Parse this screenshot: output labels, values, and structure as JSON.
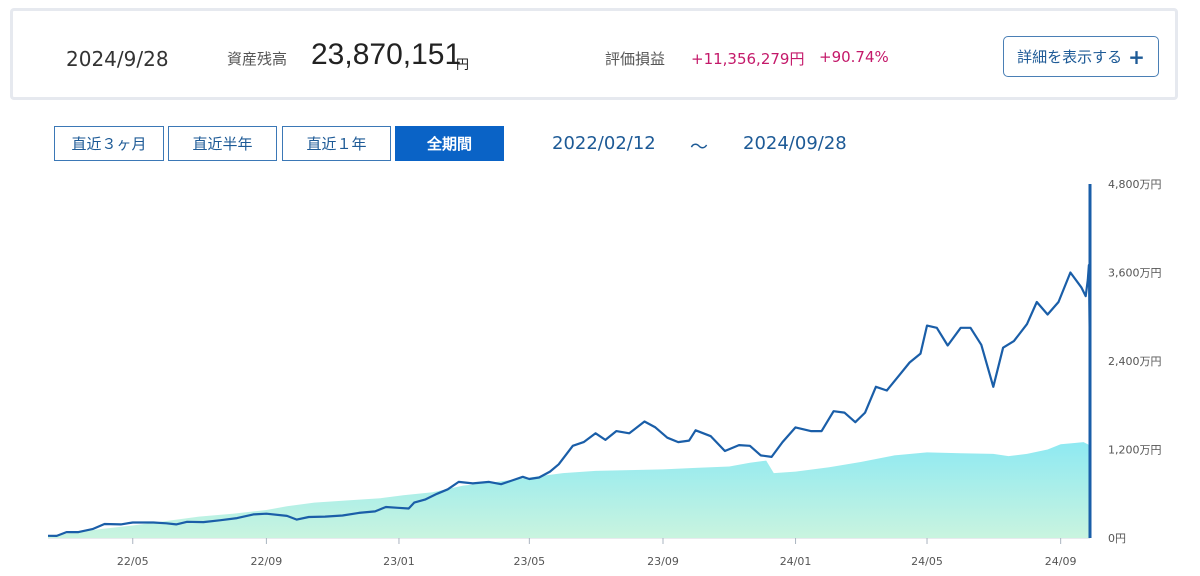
{
  "summary": {
    "date": "2024/9/28",
    "balance_label": "資産残高",
    "balance_value": "23,870,151",
    "balance_unit": "円",
    "pl_label": "評価損益",
    "pl_amount": "+11,356,279円",
    "pl_percent": "+90.74%",
    "detail_button": "詳細を表示する"
  },
  "range_buttons": [
    "直近３ヶ月",
    "直近半年",
    "直近１年",
    "全期間"
  ],
  "active_range": "全期間",
  "period": {
    "start": "2022/02/12",
    "separator": "～",
    "end": "2024/09/28"
  },
  "colors": {
    "line": "#1a5ea8",
    "area_top": "#8ee9f2",
    "area_bottom": "#c9f4df",
    "accent": "#0a63c6",
    "profit": "#c4196a"
  },
  "chart_data": {
    "type": "line",
    "x_ticks": [
      "22/05",
      "22/09",
      "23/01",
      "23/05",
      "23/09",
      "24/01",
      "24/05",
      "24/09"
    ],
    "y_ticks": [
      "0円",
      "1,200万円",
      "2,400万円",
      "3,600万円",
      "4,800万円"
    ],
    "ylim": [
      0,
      4800
    ],
    "y_unit": "万円",
    "x_start": "2022/02/12",
    "x_end": "2024/09/28",
    "series": [
      {
        "role": "balance",
        "style": "line",
        "points": [
          [
            "2022-02-12",
            30
          ],
          [
            "2022-02-20",
            28
          ],
          [
            "2022-03-01",
            80
          ],
          [
            "2022-03-12",
            80
          ],
          [
            "2022-03-25",
            120
          ],
          [
            "2022-04-05",
            190
          ],
          [
            "2022-04-20",
            185
          ],
          [
            "2022-05-01",
            210
          ],
          [
            "2022-05-20",
            210
          ],
          [
            "2022-06-01",
            200
          ],
          [
            "2022-06-10",
            185
          ],
          [
            "2022-06-20",
            220
          ],
          [
            "2022-07-05",
            215
          ],
          [
            "2022-07-20",
            240
          ],
          [
            "2022-08-05",
            270
          ],
          [
            "2022-08-20",
            320
          ],
          [
            "2022-09-01",
            330
          ],
          [
            "2022-09-20",
            300
          ],
          [
            "2022-09-29",
            250
          ],
          [
            "2022-10-10",
            285
          ],
          [
            "2022-10-25",
            290
          ],
          [
            "2022-11-10",
            305
          ],
          [
            "2022-11-25",
            340
          ],
          [
            "2022-12-10",
            360
          ],
          [
            "2022-12-20",
            420
          ],
          [
            "2022-12-31",
            410
          ],
          [
            "2023-01-10",
            400
          ],
          [
            "2023-01-15",
            480
          ],
          [
            "2023-01-25",
            520
          ],
          [
            "2023-02-05",
            600
          ],
          [
            "2023-02-15",
            660
          ],
          [
            "2023-02-25",
            760
          ],
          [
            "2023-03-10",
            740
          ],
          [
            "2023-03-25",
            760
          ],
          [
            "2023-04-05",
            730
          ],
          [
            "2023-04-15",
            780
          ],
          [
            "2023-04-25",
            830
          ],
          [
            "2023-05-01",
            800
          ],
          [
            "2023-05-10",
            820
          ],
          [
            "2023-05-20",
            900
          ],
          [
            "2023-05-28",
            1000
          ],
          [
            "2023-06-10",
            1250
          ],
          [
            "2023-06-20",
            1300
          ],
          [
            "2023-07-01",
            1420
          ],
          [
            "2023-07-10",
            1330
          ],
          [
            "2023-07-20",
            1450
          ],
          [
            "2023-08-01",
            1420
          ],
          [
            "2023-08-15",
            1580
          ],
          [
            "2023-08-25",
            1500
          ],
          [
            "2023-09-05",
            1360
          ],
          [
            "2023-09-15",
            1300
          ],
          [
            "2023-09-25",
            1320
          ],
          [
            "2023-10-01",
            1460
          ],
          [
            "2023-10-15",
            1380
          ],
          [
            "2023-10-28",
            1180
          ],
          [
            "2023-11-10",
            1260
          ],
          [
            "2023-11-20",
            1250
          ],
          [
            "2023-11-30",
            1120
          ],
          [
            "2023-12-10",
            1100
          ],
          [
            "2023-12-20",
            1300
          ],
          [
            "2024-01-01",
            1500
          ],
          [
            "2024-01-15",
            1450
          ],
          [
            "2024-01-25",
            1450
          ],
          [
            "2024-02-05",
            1720
          ],
          [
            "2024-02-15",
            1700
          ],
          [
            "2024-02-25",
            1570
          ],
          [
            "2024-03-05",
            1700
          ],
          [
            "2024-03-15",
            2050
          ],
          [
            "2024-03-25",
            2000
          ],
          [
            "2024-04-05",
            2200
          ],
          [
            "2024-04-15",
            2380
          ],
          [
            "2024-04-25",
            2500
          ],
          [
            "2024-05-01",
            2880
          ],
          [
            "2024-05-10",
            2850
          ],
          [
            "2024-05-20",
            2610
          ],
          [
            "2024-06-01",
            2850
          ],
          [
            "2024-06-10",
            2850
          ],
          [
            "2024-06-20",
            2620
          ],
          [
            "2024-07-01",
            2050
          ],
          [
            "2024-07-10",
            2580
          ],
          [
            "2024-07-20",
            2670
          ],
          [
            "2024-08-01",
            2900
          ],
          [
            "2024-08-10",
            3200
          ],
          [
            "2024-08-20",
            3030
          ],
          [
            "2024-08-30",
            3200
          ],
          [
            "2024-09-10",
            3600
          ],
          [
            "2024-09-20",
            3400
          ],
          [
            "2024-09-24",
            3280
          ],
          [
            "2024-09-26",
            3500
          ],
          [
            "2024-09-27",
            3700
          ],
          [
            "2024-09-28",
            2387
          ]
        ]
      },
      {
        "role": "principal",
        "style": "area",
        "points": [
          [
            "2022-02-12",
            30
          ],
          [
            "2022-03-01",
            60
          ],
          [
            "2022-04-01",
            120
          ],
          [
            "2022-05-01",
            170
          ],
          [
            "2022-06-01",
            230
          ],
          [
            "2022-07-01",
            290
          ],
          [
            "2022-08-01",
            330
          ],
          [
            "2022-09-01",
            380
          ],
          [
            "2022-09-20",
            430
          ],
          [
            "2022-10-15",
            480
          ],
          [
            "2022-11-15",
            510
          ],
          [
            "2022-12-15",
            540
          ],
          [
            "2023-01-05",
            580
          ],
          [
            "2023-02-01",
            620
          ],
          [
            "2023-03-01",
            710
          ],
          [
            "2023-04-01",
            760
          ],
          [
            "2023-05-01",
            820
          ],
          [
            "2023-06-01",
            880
          ],
          [
            "2023-07-01",
            910
          ],
          [
            "2023-08-01",
            920
          ],
          [
            "2023-09-01",
            930
          ],
          [
            "2023-10-01",
            950
          ],
          [
            "2023-11-01",
            970
          ],
          [
            "2023-11-20",
            1020
          ],
          [
            "2023-12-05",
            1050
          ],
          [
            "2023-12-12",
            880
          ],
          [
            "2024-01-01",
            900
          ],
          [
            "2024-02-01",
            960
          ],
          [
            "2024-03-01",
            1030
          ],
          [
            "2024-04-01",
            1120
          ],
          [
            "2024-05-01",
            1160
          ],
          [
            "2024-06-01",
            1150
          ],
          [
            "2024-07-01",
            1140
          ],
          [
            "2024-07-15",
            1110
          ],
          [
            "2024-08-01",
            1140
          ],
          [
            "2024-08-20",
            1200
          ],
          [
            "2024-09-01",
            1270
          ],
          [
            "2024-09-15",
            1290
          ],
          [
            "2024-09-22",
            1300
          ],
          [
            "2024-09-26",
            1270
          ],
          [
            "2024-09-28",
            1250
          ]
        ]
      }
    ]
  }
}
